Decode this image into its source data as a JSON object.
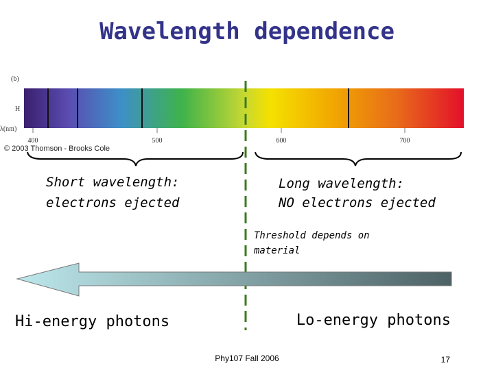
{
  "title": "Wavelength dependence",
  "spectrum": {
    "panel_label": "(b)",
    "row_label": "H",
    "axis_label": "λ(nm)",
    "ticks": [
      "400",
      "500",
      "600",
      "700"
    ],
    "credit": "© 2003 Thomson - Brooks Cole"
  },
  "left_note": {
    "line1": "Short wavelength:",
    "line2": "electrons ejected"
  },
  "right_note": {
    "line1": "Long wavelength:",
    "line2": "NO electrons ejected"
  },
  "threshold_note": {
    "line1": "Threshold depends on",
    "line2": "material"
  },
  "left_energy": "Hi-energy photons",
  "right_energy": "Lo-energy photons",
  "footer": "Phy107 Fall 2006",
  "page_number": "17"
}
